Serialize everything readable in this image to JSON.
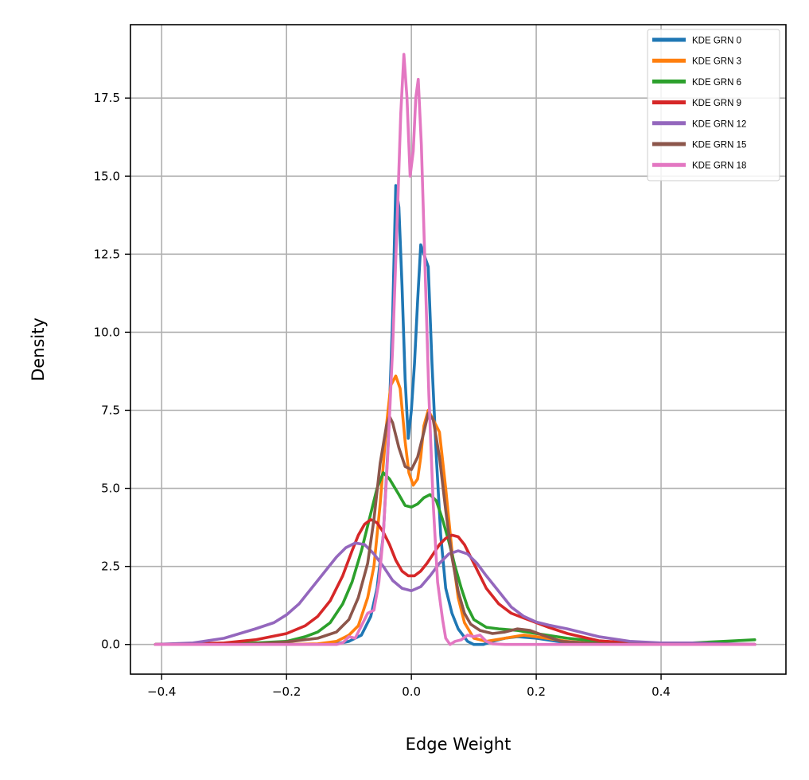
{
  "chart_data": {
    "type": "line",
    "title": "",
    "xlabel": "Edge Weight",
    "ylabel": "Density",
    "xlim": [
      -0.45,
      0.6
    ],
    "ylim": [
      -0.95,
      19.85
    ],
    "xticks": [
      -0.4,
      -0.2,
      0.0,
      0.2,
      0.4
    ],
    "xtick_labels": [
      "−0.4",
      "−0.2",
      "0.0",
      "0.2",
      "0.4"
    ],
    "yticks": [
      0.0,
      2.5,
      5.0,
      7.5,
      10.0,
      12.5,
      15.0,
      17.5
    ],
    "ytick_labels": [
      "0.0",
      "2.5",
      "5.0",
      "7.5",
      "10.0",
      "12.5",
      "15.0",
      "17.5"
    ],
    "grid": true,
    "legend_position": "top-right",
    "series": [
      {
        "name": "KDE GRN 0",
        "color": "#1f77b4",
        "points": [
          [
            -0.41,
            0.0
          ],
          [
            -0.3,
            0.0
          ],
          [
            -0.2,
            0.0
          ],
          [
            -0.15,
            0.0
          ],
          [
            -0.12,
            0.02
          ],
          [
            -0.1,
            0.1
          ],
          [
            -0.08,
            0.3
          ],
          [
            -0.065,
            0.9
          ],
          [
            -0.055,
            1.8
          ],
          [
            -0.045,
            3.5
          ],
          [
            -0.037,
            6.5
          ],
          [
            -0.03,
            10.5
          ],
          [
            -0.025,
            14.7
          ],
          [
            -0.02,
            14.0
          ],
          [
            -0.015,
            11.5
          ],
          [
            -0.01,
            8.5
          ],
          [
            -0.005,
            6.6
          ],
          [
            0.0,
            7.5
          ],
          [
            0.005,
            9.0
          ],
          [
            0.01,
            11.0
          ],
          [
            0.015,
            12.8
          ],
          [
            0.02,
            12.5
          ],
          [
            0.027,
            12.1
          ],
          [
            0.033,
            9.0
          ],
          [
            0.04,
            6.0
          ],
          [
            0.047,
            3.5
          ],
          [
            0.055,
            1.8
          ],
          [
            0.065,
            1.0
          ],
          [
            0.075,
            0.5
          ],
          [
            0.09,
            0.1
          ],
          [
            0.1,
            0.0
          ],
          [
            0.115,
            0.0
          ],
          [
            0.13,
            0.1
          ],
          [
            0.15,
            0.2
          ],
          [
            0.17,
            0.25
          ],
          [
            0.2,
            0.2
          ],
          [
            0.25,
            0.05
          ],
          [
            0.3,
            0.0
          ],
          [
            0.4,
            0.0
          ],
          [
            0.55,
            0.0
          ]
        ]
      },
      {
        "name": "KDE GRN 3",
        "color": "#ff7f0e",
        "points": [
          [
            -0.41,
            0.0
          ],
          [
            -0.3,
            0.0
          ],
          [
            -0.2,
            0.0
          ],
          [
            -0.15,
            0.02
          ],
          [
            -0.12,
            0.1
          ],
          [
            -0.1,
            0.3
          ],
          [
            -0.085,
            0.6
          ],
          [
            -0.07,
            1.5
          ],
          [
            -0.06,
            2.5
          ],
          [
            -0.05,
            4.5
          ],
          [
            -0.04,
            7.0
          ],
          [
            -0.033,
            8.3
          ],
          [
            -0.025,
            8.6
          ],
          [
            -0.018,
            8.2
          ],
          [
            -0.01,
            6.5
          ],
          [
            -0.004,
            5.5
          ],
          [
            0.003,
            5.1
          ],
          [
            0.01,
            5.3
          ],
          [
            0.015,
            6.0
          ],
          [
            0.02,
            7.0
          ],
          [
            0.027,
            7.5
          ],
          [
            0.035,
            7.2
          ],
          [
            0.045,
            6.8
          ],
          [
            0.055,
            5.0
          ],
          [
            0.065,
            3.0
          ],
          [
            0.075,
            1.5
          ],
          [
            0.085,
            0.7
          ],
          [
            0.1,
            0.2
          ],
          [
            0.12,
            0.1
          ],
          [
            0.15,
            0.2
          ],
          [
            0.18,
            0.3
          ],
          [
            0.2,
            0.25
          ],
          [
            0.25,
            0.1
          ],
          [
            0.3,
            0.02
          ],
          [
            0.4,
            0.0
          ],
          [
            0.55,
            0.0
          ]
        ]
      },
      {
        "name": "KDE GRN 6",
        "color": "#2ca02c",
        "points": [
          [
            -0.41,
            0.0
          ],
          [
            -0.35,
            0.0
          ],
          [
            -0.3,
            0.02
          ],
          [
            -0.25,
            0.05
          ],
          [
            -0.2,
            0.1
          ],
          [
            -0.17,
            0.25
          ],
          [
            -0.15,
            0.4
          ],
          [
            -0.13,
            0.7
          ],
          [
            -0.11,
            1.3
          ],
          [
            -0.095,
            2.0
          ],
          [
            -0.08,
            3.0
          ],
          [
            -0.065,
            4.2
          ],
          [
            -0.055,
            5.0
          ],
          [
            -0.045,
            5.5
          ],
          [
            -0.035,
            5.3
          ],
          [
            -0.02,
            4.8
          ],
          [
            -0.01,
            4.45
          ],
          [
            0.0,
            4.4
          ],
          [
            0.01,
            4.5
          ],
          [
            0.02,
            4.7
          ],
          [
            0.03,
            4.8
          ],
          [
            0.04,
            4.6
          ],
          [
            0.05,
            4.0
          ],
          [
            0.06,
            3.3
          ],
          [
            0.07,
            2.5
          ],
          [
            0.08,
            1.8
          ],
          [
            0.09,
            1.2
          ],
          [
            0.1,
            0.8
          ],
          [
            0.12,
            0.55
          ],
          [
            0.14,
            0.5
          ],
          [
            0.17,
            0.45
          ],
          [
            0.2,
            0.35
          ],
          [
            0.25,
            0.2
          ],
          [
            0.3,
            0.1
          ],
          [
            0.35,
            0.05
          ],
          [
            0.4,
            0.05
          ],
          [
            0.45,
            0.05
          ],
          [
            0.5,
            0.1
          ],
          [
            0.55,
            0.15
          ]
        ]
      },
      {
        "name": "KDE GRN 9",
        "color": "#d62728",
        "points": [
          [
            -0.41,
            0.0
          ],
          [
            -0.35,
            0.02
          ],
          [
            -0.3,
            0.05
          ],
          [
            -0.25,
            0.15
          ],
          [
            -0.2,
            0.35
          ],
          [
            -0.17,
            0.6
          ],
          [
            -0.15,
            0.9
          ],
          [
            -0.13,
            1.4
          ],
          [
            -0.11,
            2.2
          ],
          [
            -0.095,
            3.0
          ],
          [
            -0.085,
            3.5
          ],
          [
            -0.075,
            3.85
          ],
          [
            -0.065,
            4.0
          ],
          [
            -0.055,
            3.9
          ],
          [
            -0.045,
            3.6
          ],
          [
            -0.035,
            3.2
          ],
          [
            -0.025,
            2.7
          ],
          [
            -0.015,
            2.35
          ],
          [
            -0.005,
            2.2
          ],
          [
            0.005,
            2.2
          ],
          [
            0.015,
            2.35
          ],
          [
            0.025,
            2.6
          ],
          [
            0.035,
            2.9
          ],
          [
            0.045,
            3.2
          ],
          [
            0.055,
            3.4
          ],
          [
            0.065,
            3.5
          ],
          [
            0.075,
            3.45
          ],
          [
            0.085,
            3.2
          ],
          [
            0.1,
            2.6
          ],
          [
            0.12,
            1.8
          ],
          [
            0.14,
            1.3
          ],
          [
            0.16,
            1.0
          ],
          [
            0.18,
            0.85
          ],
          [
            0.2,
            0.7
          ],
          [
            0.22,
            0.55
          ],
          [
            0.25,
            0.35
          ],
          [
            0.3,
            0.12
          ],
          [
            0.35,
            0.05
          ],
          [
            0.4,
            0.02
          ],
          [
            0.55,
            0.0
          ]
        ]
      },
      {
        "name": "KDE GRN 12",
        "color": "#9467bd",
        "points": [
          [
            -0.41,
            0.0
          ],
          [
            -0.35,
            0.05
          ],
          [
            -0.3,
            0.2
          ],
          [
            -0.25,
            0.5
          ],
          [
            -0.22,
            0.7
          ],
          [
            -0.2,
            0.95
          ],
          [
            -0.18,
            1.3
          ],
          [
            -0.16,
            1.8
          ],
          [
            -0.14,
            2.3
          ],
          [
            -0.12,
            2.8
          ],
          [
            -0.105,
            3.1
          ],
          [
            -0.09,
            3.25
          ],
          [
            -0.075,
            3.2
          ],
          [
            -0.06,
            2.9
          ],
          [
            -0.045,
            2.5
          ],
          [
            -0.03,
            2.05
          ],
          [
            -0.015,
            1.8
          ],
          [
            0.0,
            1.72
          ],
          [
            0.015,
            1.85
          ],
          [
            0.03,
            2.2
          ],
          [
            0.045,
            2.6
          ],
          [
            0.06,
            2.9
          ],
          [
            0.075,
            3.0
          ],
          [
            0.09,
            2.9
          ],
          [
            0.105,
            2.6
          ],
          [
            0.12,
            2.2
          ],
          [
            0.14,
            1.7
          ],
          [
            0.16,
            1.2
          ],
          [
            0.18,
            0.9
          ],
          [
            0.2,
            0.72
          ],
          [
            0.22,
            0.62
          ],
          [
            0.25,
            0.5
          ],
          [
            0.28,
            0.35
          ],
          [
            0.3,
            0.25
          ],
          [
            0.35,
            0.1
          ],
          [
            0.4,
            0.05
          ],
          [
            0.45,
            0.05
          ],
          [
            0.5,
            0.02
          ],
          [
            0.55,
            0.0
          ]
        ]
      },
      {
        "name": "KDE GRN 15",
        "color": "#8c564b",
        "points": [
          [
            -0.41,
            0.0
          ],
          [
            -0.3,
            0.0
          ],
          [
            -0.25,
            0.02
          ],
          [
            -0.2,
            0.08
          ],
          [
            -0.15,
            0.2
          ],
          [
            -0.12,
            0.4
          ],
          [
            -0.1,
            0.8
          ],
          [
            -0.085,
            1.5
          ],
          [
            -0.07,
            2.6
          ],
          [
            -0.06,
            4.0
          ],
          [
            -0.05,
            5.8
          ],
          [
            -0.04,
            7.0
          ],
          [
            -0.035,
            7.3
          ],
          [
            -0.03,
            7.1
          ],
          [
            -0.02,
            6.3
          ],
          [
            -0.01,
            5.7
          ],
          [
            0.0,
            5.6
          ],
          [
            0.01,
            6.0
          ],
          [
            0.02,
            6.8
          ],
          [
            0.027,
            7.4
          ],
          [
            0.035,
            7.2
          ],
          [
            0.045,
            6.0
          ],
          [
            0.055,
            4.3
          ],
          [
            0.065,
            2.8
          ],
          [
            0.075,
            1.7
          ],
          [
            0.085,
            1.0
          ],
          [
            0.095,
            0.65
          ],
          [
            0.11,
            0.45
          ],
          [
            0.13,
            0.35
          ],
          [
            0.15,
            0.4
          ],
          [
            0.17,
            0.5
          ],
          [
            0.19,
            0.45
          ],
          [
            0.21,
            0.3
          ],
          [
            0.24,
            0.1
          ],
          [
            0.3,
            0.02
          ],
          [
            0.4,
            0.0
          ],
          [
            0.55,
            0.0
          ]
        ]
      },
      {
        "name": "KDE GRN 18",
        "color": "#e377c2",
        "points": [
          [
            -0.41,
            0.0
          ],
          [
            -0.3,
            0.0
          ],
          [
            -0.2,
            0.0
          ],
          [
            -0.15,
            0.0
          ],
          [
            -0.12,
            0.0
          ],
          [
            -0.11,
            0.05
          ],
          [
            -0.1,
            0.25
          ],
          [
            -0.09,
            0.2
          ],
          [
            -0.08,
            0.6
          ],
          [
            -0.07,
            1.0
          ],
          [
            -0.06,
            1.1
          ],
          [
            -0.052,
            2.0
          ],
          [
            -0.045,
            3.5
          ],
          [
            -0.038,
            6.0
          ],
          [
            -0.03,
            9.5
          ],
          [
            -0.022,
            14.0
          ],
          [
            -0.017,
            17.0
          ],
          [
            -0.012,
            18.9
          ],
          [
            -0.007,
            17.5
          ],
          [
            -0.002,
            15.0
          ],
          [
            0.003,
            15.8
          ],
          [
            0.007,
            17.5
          ],
          [
            0.011,
            18.1
          ],
          [
            0.016,
            16.0
          ],
          [
            0.022,
            12.0
          ],
          [
            0.028,
            8.0
          ],
          [
            0.035,
            4.5
          ],
          [
            0.042,
            2.0
          ],
          [
            0.05,
            0.8
          ],
          [
            0.055,
            0.2
          ],
          [
            0.062,
            0.0
          ],
          [
            0.07,
            0.1
          ],
          [
            0.08,
            0.15
          ],
          [
            0.09,
            0.3
          ],
          [
            0.1,
            0.25
          ],
          [
            0.11,
            0.3
          ],
          [
            0.12,
            0.1
          ],
          [
            0.13,
            0.02
          ],
          [
            0.15,
            0.0
          ],
          [
            0.3,
            0.0
          ],
          [
            0.55,
            0.0
          ]
        ]
      }
    ]
  }
}
